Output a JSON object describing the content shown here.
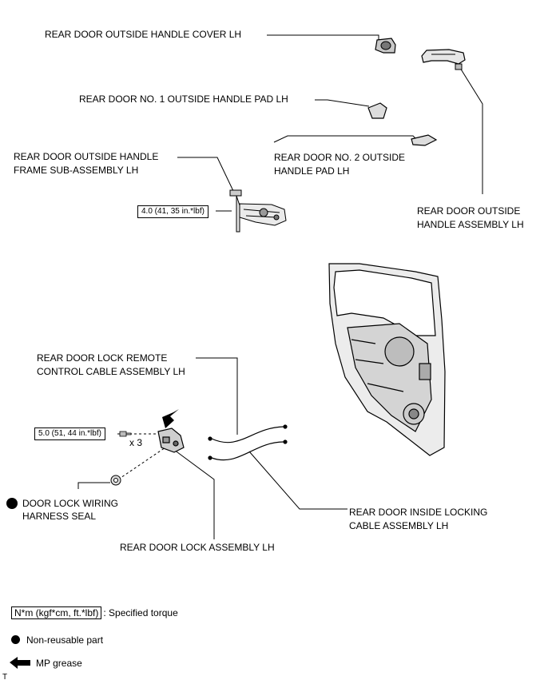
{
  "labels": {
    "handle_cover": "REAR DOOR OUTSIDE HANDLE COVER LH",
    "pad1": "REAR DOOR NO. 1 OUTSIDE HANDLE PAD LH",
    "frame_line1": "REAR DOOR OUTSIDE HANDLE",
    "frame_line2": "FRAME SUB-ASSEMBLY LH",
    "pad2_line1": "REAR DOOR NO. 2 OUTSIDE",
    "pad2_line2": "HANDLE PAD LH",
    "handle_assy_line1": "REAR DOOR OUTSIDE",
    "handle_assy_line2": "HANDLE ASSEMBLY LH",
    "remote_cable_line1": "REAR DOOR LOCK REMOTE",
    "remote_cable_line2": "CONTROL CABLE ASSEMBLY LH",
    "seal_line1": "DOOR LOCK WIRING",
    "seal_line2": "HARNESS SEAL",
    "lock_assy": "REAR DOOR LOCK ASSEMBLY LH",
    "inside_cable_line1": "REAR DOOR INSIDE LOCKING",
    "inside_cable_line2": "CABLE ASSEMBLY LH",
    "qty": "x 3"
  },
  "torques": {
    "frame_torque": "4.0 (41, 35 in.*lbf)",
    "lock_torque": "5.0 (51, 44 in.*lbf)"
  },
  "legend": {
    "torque_unit": "N*m (kgf*cm, ft.*lbf)",
    "torque_desc": ": Specified torque",
    "nonreusable": "Non-reusable part",
    "grease": "MP grease"
  },
  "corner_mark": "T",
  "colors": {
    "ink": "#000000",
    "paper": "#ffffff"
  }
}
